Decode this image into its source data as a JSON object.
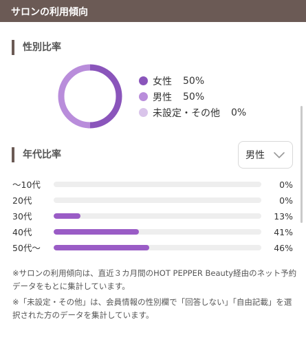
{
  "header": {
    "title": "サロンの利用傾向"
  },
  "gender_section": {
    "heading": "性別比率",
    "legend": [
      {
        "label": "女性",
        "value": "50%",
        "color": "#8a55bb"
      },
      {
        "label": "男性",
        "value": "50%",
        "color": "#b98ddb"
      },
      {
        "label": "未設定・その他",
        "value": "0%",
        "color": "#d9c4ea"
      }
    ]
  },
  "age_section": {
    "heading": "年代比率",
    "select": {
      "value": "男性",
      "icon": "chevron-down-icon"
    },
    "rows": [
      {
        "label": "～10代",
        "value": "0%"
      },
      {
        "label": "20代",
        "value": "0%"
      },
      {
        "label": "30代",
        "value": "13%"
      },
      {
        "label": "40代",
        "value": "41%"
      },
      {
        "label": "50代～",
        "value": "46%"
      }
    ]
  },
  "chart_data": [
    {
      "type": "pie",
      "categories": [
        "女性",
        "男性",
        "未設定・その他"
      ],
      "values": [
        50,
        50,
        0
      ],
      "title": "性別比率"
    },
    {
      "type": "bar",
      "categories": [
        "～10代",
        "20代",
        "30代",
        "40代",
        "50代～"
      ],
      "values": [
        0,
        0,
        13,
        41,
        46
      ],
      "title": "年代比率"
    }
  ],
  "colors": {
    "header_bg": "#6b5a55",
    "bar_fill": "#9a5cc6",
    "bar_track": "#eeeeee"
  },
  "notes": [
    "※サロンの利用傾向は、直近３カ月間のHOT PEPPER Beauty経由のネット予約データをもとに集計しています。",
    "※「未設定・その他」は、会員情報の性別欄で「回答しない」「自由記載」を選択された方のデータを集計しています。"
  ]
}
